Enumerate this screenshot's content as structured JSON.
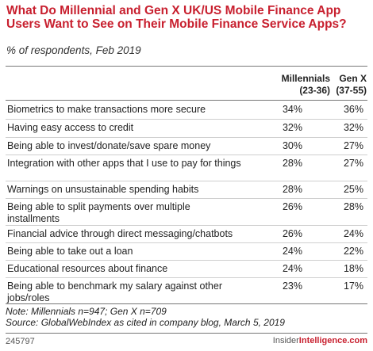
{
  "chart_data": {
    "type": "table",
    "title": "What Do Millennial and Gen X UK/US Mobile Finance App Users Want to See on Their Mobile Finance Service Apps?",
    "subtitle": "% of respondents, Feb 2019",
    "columns": [
      {
        "name": "Millennials",
        "range": "(23-36)"
      },
      {
        "name": "Gen X",
        "range": "(37-55)"
      }
    ],
    "rows": [
      {
        "label": "Biometrics to make transactions more secure",
        "millennials": "34%",
        "genx": "36%"
      },
      {
        "label": "Having easy access to credit",
        "millennials": "32%",
        "genx": "32%"
      },
      {
        "label": "Being able to invest/donate/save spare money",
        "millennials": "30%",
        "genx": "27%"
      },
      {
        "label": "Integration with other apps that I use to pay for things",
        "millennials": "28%",
        "genx": "27%"
      },
      {
        "label": "Warnings on unsustainable spending habits",
        "millennials": "28%",
        "genx": "25%"
      },
      {
        "label": "Being able to split payments over multiple installments",
        "millennials": "26%",
        "genx": "28%"
      },
      {
        "label": "Financial advice through direct messaging/chatbots",
        "millennials": "26%",
        "genx": "24%"
      },
      {
        "label": "Being able to take out a loan",
        "millennials": "24%",
        "genx": "22%"
      },
      {
        "label": "Educational resources about finance",
        "millennials": "24%",
        "genx": "18%"
      },
      {
        "label": "Being able to benchmark my salary against other jobs/roles",
        "millennials": "23%",
        "genx": "17%"
      }
    ],
    "note": "Note: Millennials n=947; Gen X n=709",
    "source": "Source: GlobalWebIndex as cited in company blog, March 5, 2019"
  },
  "footer": {
    "chart_id": "245797",
    "brand_prefix": "Insider",
    "brand_suffix": "Intelligence.com"
  },
  "colors": {
    "title": "#c8202f",
    "text": "#222222",
    "rule": "#777777",
    "separator": "#cfcfcf"
  }
}
